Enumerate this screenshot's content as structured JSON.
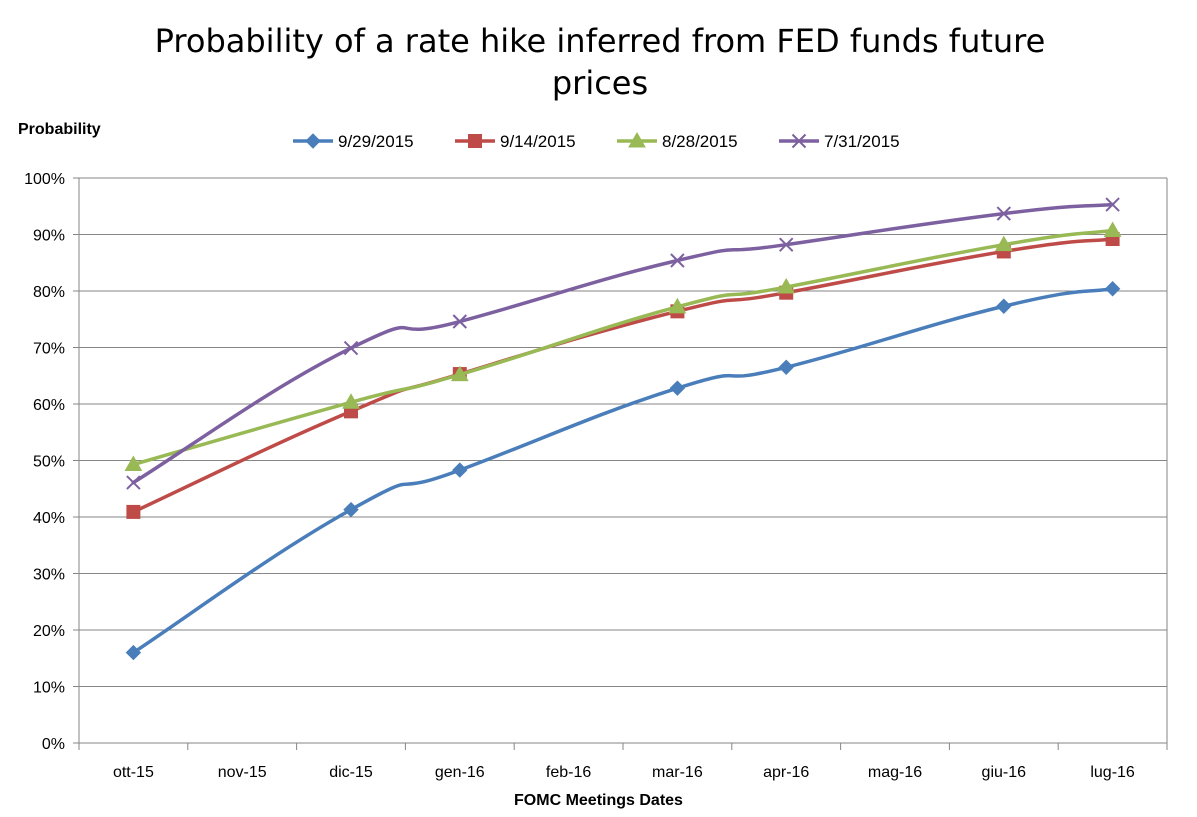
{
  "chart_data": {
    "type": "line",
    "title": "Probability of a rate hike inferred from FED funds future prices",
    "xlabel": "FOMC Meetings Dates",
    "ylabel": "Probability",
    "categories": [
      "ott-15",
      "nov-15",
      "dic-15",
      "gen-16",
      "feb-16",
      "mar-16",
      "apr-16",
      "mag-16",
      "giu-16",
      "lug-16"
    ],
    "y_ticks": [
      "0%",
      "10%",
      "20%",
      "30%",
      "40%",
      "50%",
      "60%",
      "70%",
      "80%",
      "90%",
      "100%"
    ],
    "ylim": [
      0,
      100
    ],
    "grid": true,
    "legend_position": "top",
    "series": [
      {
        "name": "9/29/2015",
        "color": "#4A7EBB",
        "marker": "diamond",
        "points": [
          {
            "category": "ott-15",
            "value": 16
          },
          {
            "category": "dic-15",
            "value": 41.3
          },
          {
            "category": "gen-16",
            "value": 48.3
          },
          {
            "category": "mar-16",
            "value": 62.8
          },
          {
            "category": "apr-16",
            "value": 66.5
          },
          {
            "category": "giu-16",
            "value": 77.3
          },
          {
            "category": "lug-16",
            "value": 80.4
          }
        ]
      },
      {
        "name": "9/14/2015",
        "color": "#BE4B48",
        "marker": "square",
        "points": [
          {
            "category": "ott-15",
            "value": 40.9
          },
          {
            "category": "dic-15",
            "value": 58.7
          },
          {
            "category": "gen-16",
            "value": 65.3
          },
          {
            "category": "mar-16",
            "value": 76.4
          },
          {
            "category": "apr-16",
            "value": 79.7
          },
          {
            "category": "giu-16",
            "value": 87
          },
          {
            "category": "lug-16",
            "value": 89.2
          }
        ]
      },
      {
        "name": "8/28/2015",
        "color": "#98B954",
        "marker": "triangle",
        "points": [
          {
            "category": "ott-15",
            "value": 49.3
          },
          {
            "category": "dic-15",
            "value": 60.3
          },
          {
            "category": "gen-16",
            "value": 65.2
          },
          {
            "category": "mar-16",
            "value": 77.2
          },
          {
            "category": "apr-16",
            "value": 80.7
          },
          {
            "category": "giu-16",
            "value": 88.2
          },
          {
            "category": "lug-16",
            "value": 90.7
          }
        ]
      },
      {
        "name": "7/31/2015",
        "color": "#7D60A0",
        "marker": "x",
        "points": [
          {
            "category": "ott-15",
            "value": 46.1
          },
          {
            "category": "dic-15",
            "value": 69.9
          },
          {
            "category": "gen-16",
            "value": 74.6
          },
          {
            "category": "mar-16",
            "value": 85.4
          },
          {
            "category": "apr-16",
            "value": 88.2
          },
          {
            "category": "giu-16",
            "value": 93.7
          },
          {
            "category": "lug-16",
            "value": 95.3
          }
        ]
      }
    ]
  }
}
